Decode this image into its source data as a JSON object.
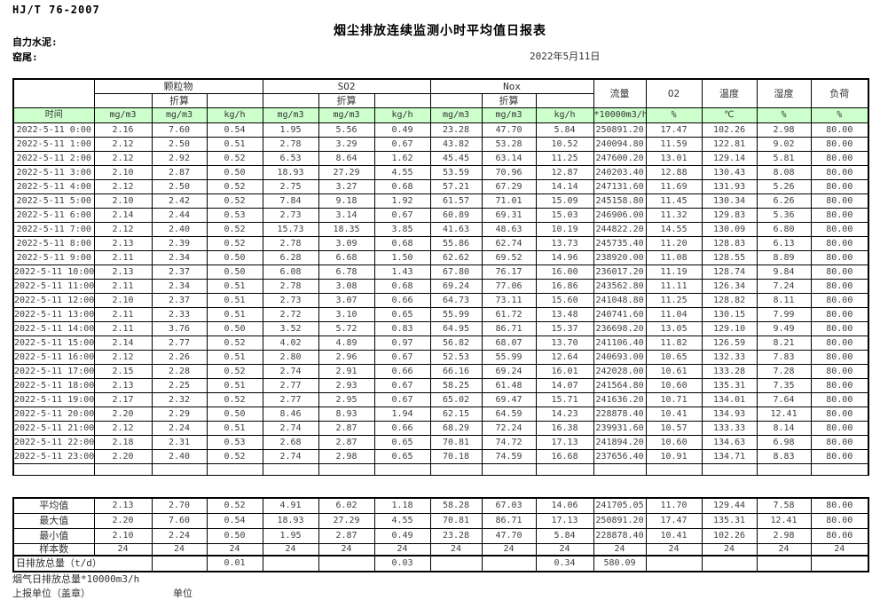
{
  "page": {
    "standard": "HJ/T  76-2007",
    "title": "烟尘排放连续监测小时平均值日报表",
    "company": "自力水泥:",
    "site": "窑尾:",
    "date": "2022年5月11日"
  },
  "colors": {
    "header_green": "#ccffcc",
    "border": "#000000"
  },
  "table": {
    "groups": {
      "pm": "颗粒物",
      "so2": "SO2",
      "nox": "Nox",
      "flow": "流量",
      "o2": "O2",
      "temp": "温度",
      "humidity": "湿度",
      "load": "负荷",
      "converted": "折算"
    },
    "units_row": [
      "时间",
      "mg/m3",
      "mg/m3",
      "kg/h",
      "mg/m3",
      "mg/m3",
      "kg/h",
      "mg/m3",
      "mg/m3",
      "kg/h",
      "*10000m3/h",
      "%",
      "℃",
      "%",
      "%"
    ],
    "rows": [
      [
        "2022-5-11 0:00",
        "2.16",
        "7.60",
        "0.54",
        "1.95",
        "5.56",
        "0.49",
        "23.28",
        "47.70",
        "5.84",
        "250891.20",
        "17.47",
        "102.26",
        "2.98",
        "80.00"
      ],
      [
        "2022-5-11 1:00",
        "2.12",
        "2.50",
        "0.51",
        "2.78",
        "3.29",
        "0.67",
        "43.82",
        "53.28",
        "10.52",
        "240094.80",
        "11.59",
        "122.81",
        "9.02",
        "80.00"
      ],
      [
        "2022-5-11 2:00",
        "2.12",
        "2.92",
        "0.52",
        "6.53",
        "8.64",
        "1.62",
        "45.45",
        "63.14",
        "11.25",
        "247600.20",
        "13.01",
        "129.14",
        "5.81",
        "80.00"
      ],
      [
        "2022-5-11 3:00",
        "2.10",
        "2.87",
        "0.50",
        "18.93",
        "27.29",
        "4.55",
        "53.59",
        "70.96",
        "12.87",
        "240203.40",
        "12.88",
        "130.43",
        "8.08",
        "80.00"
      ],
      [
        "2022-5-11 4:00",
        "2.12",
        "2.50",
        "0.52",
        "2.75",
        "3.27",
        "0.68",
        "57.21",
        "67.29",
        "14.14",
        "247131.60",
        "11.69",
        "131.93",
        "5.26",
        "80.00"
      ],
      [
        "2022-5-11 5:00",
        "2.10",
        "2.42",
        "0.52",
        "7.84",
        "9.18",
        "1.92",
        "61.57",
        "71.01",
        "15.09",
        "245158.80",
        "11.45",
        "130.34",
        "6.26",
        "80.00"
      ],
      [
        "2022-5-11 6:00",
        "2.14",
        "2.44",
        "0.53",
        "2.73",
        "3.14",
        "0.67",
        "60.89",
        "69.31",
        "15.03",
        "246906.00",
        "11.32",
        "129.83",
        "5.36",
        "80.00"
      ],
      [
        "2022-5-11 7:00",
        "2.12",
        "2.40",
        "0.52",
        "15.73",
        "18.35",
        "3.85",
        "41.63",
        "48.63",
        "10.19",
        "244822.20",
        "14.55",
        "130.09",
        "6.80",
        "80.00"
      ],
      [
        "2022-5-11 8:00",
        "2.13",
        "2.39",
        "0.52",
        "2.78",
        "3.09",
        "0.68",
        "55.86",
        "62.74",
        "13.73",
        "245735.40",
        "11.20",
        "128.83",
        "6.13",
        "80.00"
      ],
      [
        "2022-5-11 9:00",
        "2.11",
        "2.34",
        "0.50",
        "6.28",
        "6.68",
        "1.50",
        "62.62",
        "69.52",
        "14.96",
        "238920.00",
        "11.08",
        "128.55",
        "8.89",
        "80.00"
      ],
      [
        "2022-5-11 10:00",
        "2.13",
        "2.37",
        "0.50",
        "6.08",
        "6.78",
        "1.43",
        "67.80",
        "76.17",
        "16.00",
        "236017.20",
        "11.19",
        "128.74",
        "9.84",
        "80.00"
      ],
      [
        "2022-5-11 11:00",
        "2.11",
        "2.34",
        "0.51",
        "2.78",
        "3.08",
        "0.68",
        "69.24",
        "77.06",
        "16.86",
        "243562.80",
        "11.11",
        "126.34",
        "7.24",
        "80.00"
      ],
      [
        "2022-5-11 12:00",
        "2.10",
        "2.37",
        "0.51",
        "2.73",
        "3.07",
        "0.66",
        "64.73",
        "73.11",
        "15.60",
        "241048.80",
        "11.25",
        "128.82",
        "8.11",
        "80.00"
      ],
      [
        "2022-5-11 13:00",
        "2.11",
        "2.33",
        "0.51",
        "2.72",
        "3.10",
        "0.65",
        "55.99",
        "61.72",
        "13.48",
        "240741.60",
        "11.04",
        "130.15",
        "7.99",
        "80.00"
      ],
      [
        "2022-5-11 14:00",
        "2.11",
        "3.76",
        "0.50",
        "3.52",
        "5.72",
        "0.83",
        "64.95",
        "86.71",
        "15.37",
        "236698.20",
        "13.05",
        "129.10",
        "9.49",
        "80.00"
      ],
      [
        "2022-5-11 15:00",
        "2.14",
        "2.77",
        "0.52",
        "4.02",
        "4.89",
        "0.97",
        "56.82",
        "68.07",
        "13.70",
        "241106.40",
        "11.82",
        "126.59",
        "8.21",
        "80.00"
      ],
      [
        "2022-5-11 16:00",
        "2.12",
        "2.26",
        "0.51",
        "2.80",
        "2.96",
        "0.67",
        "52.53",
        "55.99",
        "12.64",
        "240693.00",
        "10.65",
        "132.33",
        "7.83",
        "80.00"
      ],
      [
        "2022-5-11 17:00",
        "2.15",
        "2.28",
        "0.52",
        "2.74",
        "2.91",
        "0.66",
        "66.16",
        "69.24",
        "16.01",
        "242028.00",
        "10.61",
        "133.28",
        "7.28",
        "80.00"
      ],
      [
        "2022-5-11 18:00",
        "2.13",
        "2.25",
        "0.51",
        "2.77",
        "2.93",
        "0.67",
        "58.25",
        "61.48",
        "14.07",
        "241564.80",
        "10.60",
        "135.31",
        "7.35",
        "80.00"
      ],
      [
        "2022-5-11 19:00",
        "2.17",
        "2.32",
        "0.52",
        "2.77",
        "2.95",
        "0.67",
        "65.02",
        "69.47",
        "15.71",
        "241636.20",
        "10.71",
        "134.01",
        "7.64",
        "80.00"
      ],
      [
        "2022-5-11 20:00",
        "2.20",
        "2.29",
        "0.50",
        "8.46",
        "8.93",
        "1.94",
        "62.15",
        "64.59",
        "14.23",
        "228878.40",
        "10.41",
        "134.93",
        "12.41",
        "80.00"
      ],
      [
        "2022-5-11 21:00",
        "2.12",
        "2.24",
        "0.51",
        "2.74",
        "2.87",
        "0.66",
        "68.29",
        "72.24",
        "16.38",
        "239931.60",
        "10.57",
        "133.33",
        "8.14",
        "80.00"
      ],
      [
        "2022-5-11 22:00",
        "2.18",
        "2.31",
        "0.53",
        "2.68",
        "2.87",
        "0.65",
        "70.81",
        "74.72",
        "17.13",
        "241894.20",
        "10.60",
        "134.63",
        "6.98",
        "80.00"
      ],
      [
        "2022-5-11 23:00",
        "2.20",
        "2.40",
        "0.52",
        "2.74",
        "2.98",
        "0.65",
        "70.18",
        "74.59",
        "16.68",
        "237656.40",
        "10.91",
        "134.71",
        "8.83",
        "80.00"
      ]
    ],
    "summary": [
      {
        "label": "平均值",
        "values": [
          "2.13",
          "2.70",
          "0.52",
          "4.91",
          "6.02",
          "1.18",
          "58.28",
          "67.03",
          "14.06",
          "241705.05",
          "11.70",
          "129.44",
          "7.58",
          "80.00"
        ]
      },
      {
        "label": "最大值",
        "values": [
          "2.20",
          "7.60",
          "0.54",
          "18.93",
          "27.29",
          "4.55",
          "70.81",
          "86.71",
          "17.13",
          "250891.20",
          "17.47",
          "135.31",
          "12.41",
          "80.00"
        ]
      },
      {
        "label": "最小值",
        "values": [
          "2.10",
          "2.24",
          "0.50",
          "1.95",
          "2.87",
          "0.49",
          "23.28",
          "47.70",
          "5.84",
          "228878.40",
          "10.41",
          "102.26",
          "2.98",
          "80.00"
        ]
      },
      {
        "label": "样本数",
        "values": [
          "24",
          "24",
          "24",
          "24",
          "24",
          "24",
          "24",
          "24",
          "24",
          "24",
          "24",
          "24",
          "24",
          "24"
        ]
      }
    ],
    "total_row": {
      "label": "日排放总量（t/d）",
      "values": [
        "",
        "0.01",
        "",
        "",
        "0.03",
        "",
        "",
        "0.34",
        "580.09",
        "",
        "",
        "",
        ""
      ]
    }
  },
  "footer": {
    "flow_note": "烟气日排放总量*10000m3/h",
    "report_org": "上报单位（盖章）",
    "unit_label": "单位"
  }
}
